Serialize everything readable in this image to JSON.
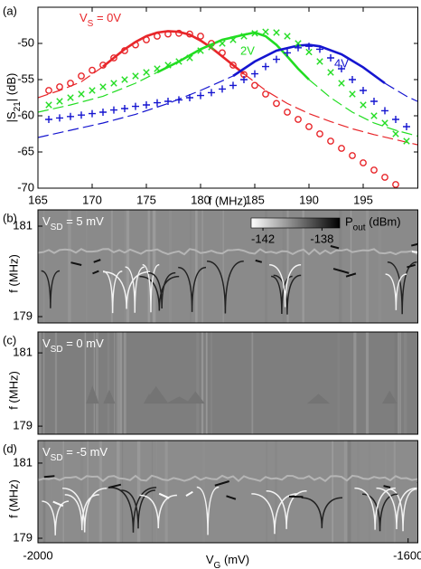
{
  "chart_data": [
    {
      "type": "scatter",
      "panel_label": "(a)",
      "xlabel": "f (MHz)",
      "ylabel": {
        "main": "|S",
        "sub": "21",
        "rest": "| (dB)"
      },
      "xlim": [
        165,
        200
      ],
      "ylim": [
        -70,
        -45
      ],
      "xticks": [
        165,
        170,
        175,
        180,
        185,
        190,
        195
      ],
      "yticks": [
        -50,
        -55,
        -60,
        -65,
        -70
      ],
      "series": [
        {
          "name": {
            "main": "V",
            "sub": "S",
            "rest": " = 0V"
          },
          "color": "#e8262a",
          "marker": "o",
          "x": [
            166,
            167,
            168,
            169,
            170,
            171,
            172,
            173,
            174,
            175,
            176,
            177,
            178,
            179,
            180,
            181,
            182,
            183,
            184,
            185,
            186,
            187,
            188,
            189,
            190,
            191,
            192,
            193,
            194,
            195,
            196,
            197,
            198
          ],
          "values": [
            -56.5,
            -56,
            -55.5,
            -54.5,
            -53.7,
            -53,
            -52,
            -51,
            -50.2,
            -49.5,
            -49,
            -48.7,
            -48.6,
            -48.7,
            -49,
            -50,
            -51.3,
            -53,
            -54.3,
            -55.8,
            -57,
            -58.3,
            -59.5,
            -60.5,
            -61.5,
            -62.5,
            -63.5,
            -64.5,
            -65.5,
            -66.5,
            -67.5,
            -68.5,
            -69.5
          ]
        },
        {
          "name": "2V",
          "color": "#22dd22",
          "marker": "x",
          "x": [
            166,
            167,
            168,
            169,
            170,
            171,
            172,
            173,
            174,
            175,
            176,
            177,
            178,
            179,
            180,
            181,
            182,
            183,
            184,
            185,
            186,
            187,
            188,
            189,
            190,
            191,
            192,
            193,
            194,
            195,
            196,
            197,
            198,
            199
          ],
          "values": [
            -58.5,
            -58,
            -57.5,
            -57,
            -56.5,
            -56,
            -55.5,
            -55,
            -54.5,
            -54,
            -53.5,
            -53,
            -52.5,
            -52,
            -51,
            -50.5,
            -50,
            -49.5,
            -49,
            -48.6,
            -48.4,
            -48.5,
            -49,
            -50,
            -51.2,
            -52.5,
            -54,
            -55.5,
            -57,
            -58.5,
            -60,
            -61,
            -62.5,
            -63.5
          ]
        },
        {
          "name": "4V",
          "color": "#1515d0",
          "marker": "+",
          "x": [
            166,
            167,
            168,
            169,
            170,
            171,
            172,
            173,
            174,
            175,
            176,
            177,
            178,
            179,
            180,
            181,
            182,
            183,
            184,
            185,
            186,
            187,
            188,
            189,
            190,
            191,
            192,
            193,
            194,
            195,
            196,
            197,
            198,
            199
          ],
          "values": [
            -60.5,
            -60.3,
            -60.1,
            -59.9,
            -59.7,
            -59.5,
            -59.2,
            -59,
            -58.7,
            -58.5,
            -58.2,
            -58,
            -57.8,
            -57.5,
            -57.2,
            -56.8,
            -56.3,
            -55.8,
            -55,
            -54.2,
            -53.2,
            -52.2,
            -51.3,
            -50.6,
            -50.4,
            -50.8,
            -52,
            -53.5,
            -55,
            -56.5,
            -58,
            -59.3,
            -60.5,
            -61.5
          ]
        }
      ],
      "fits": [
        {
          "color": "#e8262a",
          "dashed": false,
          "x": [
            171,
            172,
            173,
            174,
            175,
            176,
            177,
            178,
            179,
            180,
            181,
            182,
            183,
            184
          ],
          "values": [
            -53.2,
            -52,
            -50.8,
            -49.8,
            -49,
            -48.5,
            -48.3,
            -48.4,
            -48.8,
            -49.6,
            -50.6,
            -51.8,
            -53,
            -54.2
          ]
        },
        {
          "color": "#e8262a",
          "dashed": true,
          "x": [
            165,
            167,
            169,
            171,
            177,
            184,
            186,
            188,
            190,
            192,
            194,
            196,
            198,
            200
          ],
          "values": [
            -57.5,
            -56.5,
            -55.3,
            -53.2,
            null,
            -54.2,
            -56.5,
            -58.3,
            -59.7,
            -60.8,
            -61.8,
            -62.6,
            -63.3,
            -64
          ]
        },
        {
          "color": "#22dd22",
          "dashed": false,
          "x": [
            176,
            178,
            180,
            182,
            184,
            185,
            186,
            187,
            188,
            189,
            190
          ],
          "values": [
            -54,
            -52.5,
            -50.8,
            -49.5,
            -48.8,
            -48.5,
            -49,
            -50.2,
            -51.8,
            -53.5,
            -55
          ]
        },
        {
          "color": "#22dd22",
          "dashed": true,
          "x": [
            165,
            168,
            171,
            174,
            176,
            183,
            190,
            192,
            194,
            196,
            198,
            200
          ],
          "values": [
            -59.5,
            -58.5,
            -57.3,
            -55.5,
            -54,
            null,
            -55,
            -57.5,
            -59.5,
            -61,
            -62,
            -62.8
          ]
        },
        {
          "color": "#1515d0",
          "dashed": false,
          "x": [
            183,
            185,
            187,
            189,
            190,
            191,
            193,
            195,
            197
          ],
          "values": [
            -54.5,
            -52.5,
            -51,
            -50.3,
            -50.2,
            -50.4,
            -51.5,
            -53.3,
            -55.5
          ]
        },
        {
          "color": "#1515d0",
          "dashed": true,
          "x": [
            165,
            168,
            171,
            174,
            177,
            180,
            183,
            190,
            197,
            199,
            200
          ],
          "values": [
            -63,
            -62,
            -61,
            -59.8,
            -58.3,
            -56.5,
            -54.5,
            null,
            -55.5,
            -57.3,
            -58
          ]
        }
      ]
    },
    {
      "type": "heatmap",
      "panel_label": "(b)",
      "annotation": {
        "main": "V",
        "sub": "SD",
        "rest": " = 5 mV"
      },
      "ylabel": "f (MHz)",
      "xlim": [
        -2000,
        -1589
      ],
      "ylim": [
        178.86,
        181.36
      ],
      "yticks": [
        181,
        179
      ],
      "colorbar": {
        "label": {
          "main": "P",
          "sub": "out",
          "rest": " (dBm)"
        },
        "lim": [
          -142.8,
          -136.8
        ],
        "ticks": [
          -142,
          -138
        ]
      }
    },
    {
      "type": "heatmap",
      "panel_label": "(c)",
      "annotation": {
        "main": "V",
        "sub": "SD",
        "rest": " = 0 mV"
      },
      "ylabel": "f (MHz)",
      "xlim": [
        -2000,
        -1589
      ],
      "ylim": [
        178.78,
        181.57
      ],
      "yticks": [
        181,
        179
      ]
    },
    {
      "type": "heatmap",
      "panel_label": "(d)",
      "annotation": {
        "main": "V",
        "sub": "SD",
        "rest": " = -5 mV"
      },
      "ylabel": "f (MHz)",
      "xlim": [
        -2000,
        -1589
      ],
      "ylim": [
        178.88,
        181.6
      ],
      "yticks": [
        181,
        179
      ],
      "xticks": [
        -2000,
        -1600
      ],
      "xlabel": {
        "main": "V",
        "sub": "G",
        "rest": " (mV)"
      }
    }
  ]
}
